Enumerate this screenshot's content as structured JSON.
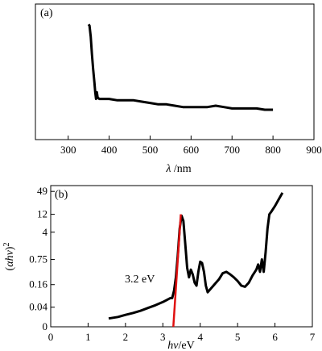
{
  "colors": {
    "curve": "#000000",
    "fit_line": "#e01010",
    "frame": "#000000",
    "background": "#ffffff"
  },
  "chart_data": [
    {
      "type": "line",
      "panel_label": "(a)",
      "xlabel": "λ /nm",
      "xlabel_symbol": "λ",
      "xlabel_unit": " /nm",
      "ylabel": "",
      "xlim": [
        220,
        900
      ],
      "xticks": [
        300,
        400,
        500,
        600,
        700,
        800,
        900
      ],
      "yticks": [],
      "ylim": [
        0,
        1
      ],
      "y_tick_labels_shown": false,
      "series": [
        {
          "x": [
            350,
            352,
            355,
            358,
            361,
            364,
            366,
            368,
            370,
            372,
            376,
            380,
            390,
            400,
            420,
            440,
            460,
            480,
            500,
            520,
            540,
            560,
            580,
            600,
            620,
            640,
            660,
            680,
            700,
            720,
            740,
            760,
            780,
            800
          ],
          "y": [
            0.85,
            0.84,
            0.76,
            0.63,
            0.52,
            0.42,
            0.35,
            0.3,
            0.35,
            0.31,
            0.3,
            0.3,
            0.3,
            0.3,
            0.29,
            0.29,
            0.29,
            0.28,
            0.27,
            0.26,
            0.26,
            0.25,
            0.24,
            0.24,
            0.24,
            0.24,
            0.25,
            0.24,
            0.23,
            0.23,
            0.23,
            0.23,
            0.22,
            0.22
          ]
        }
      ]
    },
    {
      "type": "line",
      "panel_label": "(b)",
      "xlabel": "hν/eV",
      "xlabel_symbol": "hν",
      "xlabel_unit": "/eV",
      "ylabel": "(αhν)²",
      "ylabel_paren_open": "(",
      "ylabel_symbol": "αhν",
      "ylabel_paren_close": ")",
      "ylabel_power": "2",
      "xlim": [
        0,
        7
      ],
      "xticks": [
        0,
        1,
        2,
        3,
        4,
        5,
        6,
        7
      ],
      "y_scale": "log",
      "y_zero_tick": "0",
      "ylim": [
        0.012,
        70
      ],
      "yticks": [
        0.04,
        0.16,
        0.75,
        4,
        12,
        49
      ],
      "ytick_labels": [
        "0.04",
        "0.16",
        "0.75",
        "4",
        "12",
        "49"
      ],
      "annotation": "3.2 eV",
      "series": [
        {
          "name": "",
          "x": [
            1.55,
            1.8,
            2.0,
            2.2,
            2.4,
            2.6,
            2.8,
            3.0,
            3.1,
            3.2,
            3.25,
            3.3,
            3.35,
            3.4,
            3.45,
            3.5,
            3.55,
            3.6,
            3.65,
            3.7,
            3.75,
            3.8,
            3.85,
            3.9,
            3.95,
            4.0,
            4.05,
            4.1,
            4.15,
            4.2,
            4.3,
            4.4,
            4.5,
            4.6,
            4.7,
            4.8,
            4.9,
            5.0,
            5.1,
            5.2,
            5.3,
            5.4,
            5.5,
            5.55,
            5.6,
            5.65,
            5.7,
            5.75,
            5.8,
            5.85,
            5.9,
            6.0,
            6.1,
            6.2
          ],
          "y": [
            0.02,
            0.022,
            0.025,
            0.028,
            0.032,
            0.038,
            0.045,
            0.055,
            0.062,
            0.07,
            0.07,
            0.11,
            0.25,
            1.0,
            5.0,
            11,
            8.0,
            2.0,
            0.45,
            0.25,
            0.4,
            0.3,
            0.18,
            0.15,
            0.35,
            0.65,
            0.6,
            0.35,
            0.15,
            0.1,
            0.13,
            0.17,
            0.22,
            0.32,
            0.35,
            0.3,
            0.25,
            0.2,
            0.15,
            0.14,
            0.18,
            0.28,
            0.4,
            0.55,
            0.35,
            0.75,
            0.35,
            1.2,
            5.0,
            12,
            14,
            20,
            30,
            45
          ]
        }
      ],
      "fit_line": {
        "x": [
          3.28,
          3.48
        ],
        "y": [
          0.012,
          12
        ]
      }
    }
  ]
}
